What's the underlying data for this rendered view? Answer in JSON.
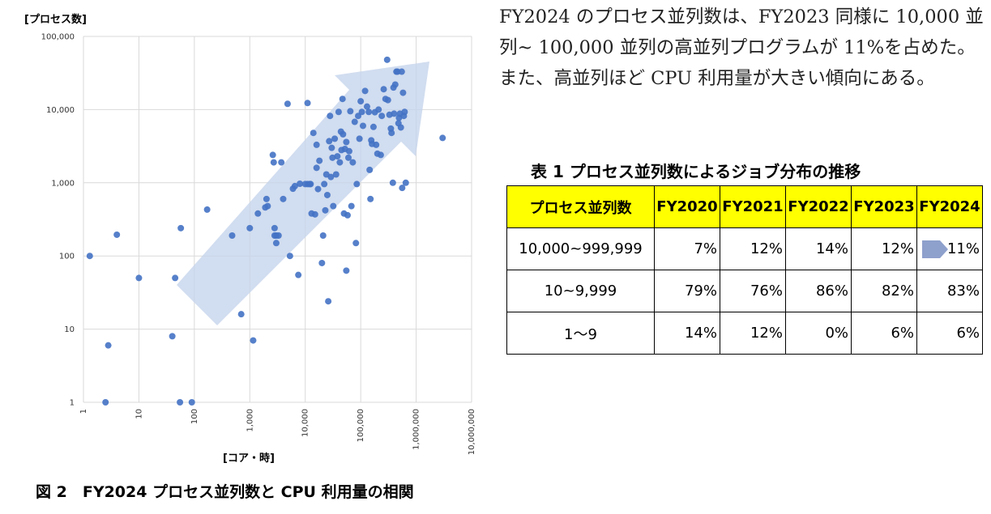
{
  "chart_data": {
    "type": "scatter",
    "title": "",
    "ylabel": "[プロセス数]",
    "xlabel": "[コア・時]",
    "xscale": "log",
    "yscale": "log",
    "xlim": [
      1,
      10000000
    ],
    "ylim": [
      1,
      100000
    ],
    "grid": true,
    "x_ticks": [
      "1",
      "10",
      "100",
      "1,000",
      "10,000",
      "100,000",
      "1,000,000",
      "10,000,000"
    ],
    "y_ticks": [
      "1",
      "10",
      "100",
      "1,000",
      "10,000",
      "100,000"
    ],
    "color": "#4472c4",
    "trend_arrow_color": "#c5d4ec",
    "points": [
      [
        1.3,
        100
      ],
      [
        2.5,
        1
      ],
      [
        2.8,
        6
      ],
      [
        4,
        195
      ],
      [
        10,
        50
      ],
      [
        40,
        8
      ],
      [
        45,
        50
      ],
      [
        55,
        1
      ],
      [
        57,
        240
      ],
      [
        90,
        1
      ],
      [
        170,
        430
      ],
      [
        480,
        190
      ],
      [
        700,
        16
      ],
      [
        1000,
        240
      ],
      [
        1150,
        7
      ],
      [
        1400,
        380
      ],
      [
        1900,
        460
      ],
      [
        2000,
        600
      ],
      [
        2100,
        480
      ],
      [
        2600,
        2400
      ],
      [
        2700,
        1900
      ],
      [
        2800,
        240
      ],
      [
        2800,
        190
      ],
      [
        3000,
        150
      ],
      [
        3000,
        190
      ],
      [
        3300,
        190
      ],
      [
        3700,
        1900
      ],
      [
        4000,
        600
      ],
      [
        4800,
        12000
      ],
      [
        5300,
        100
      ],
      [
        6000,
        830
      ],
      [
        6500,
        900
      ],
      [
        7500,
        55
      ],
      [
        8000,
        970
      ],
      [
        10000,
        960
      ],
      [
        11000,
        960
      ],
      [
        11000,
        12300
      ],
      [
        12000,
        960
      ],
      [
        12500,
        960
      ],
      [
        13000,
        380
      ],
      [
        14000,
        4800
      ],
      [
        15000,
        370
      ],
      [
        16000,
        3300
      ],
      [
        16000,
        1600
      ],
      [
        17000,
        820
      ],
      [
        18000,
        2000
      ],
      [
        20000,
        80
      ],
      [
        21000,
        190
      ],
      [
        22000,
        960
      ],
      [
        23000,
        420
      ],
      [
        24000,
        1300
      ],
      [
        25000,
        680
      ],
      [
        26000,
        24
      ],
      [
        27000,
        3700
      ],
      [
        28000,
        8200
      ],
      [
        29000,
        1200
      ],
      [
        30000,
        3000
      ],
      [
        31000,
        2200
      ],
      [
        32000,
        480
      ],
      [
        34000,
        4000
      ],
      [
        36000,
        1300
      ],
      [
        38000,
        2300
      ],
      [
        40000,
        9300
      ],
      [
        42000,
        1900
      ],
      [
        44000,
        5000
      ],
      [
        45000,
        2800
      ],
      [
        47000,
        14000
      ],
      [
        48000,
        4600
      ],
      [
        50000,
        380
      ],
      [
        52000,
        2900
      ],
      [
        55000,
        3600
      ],
      [
        55000,
        63
      ],
      [
        58000,
        360
      ],
      [
        60000,
        2200
      ],
      [
        62000,
        2700
      ],
      [
        65000,
        9500
      ],
      [
        68000,
        480
      ],
      [
        72000,
        1900
      ],
      [
        78000,
        6800
      ],
      [
        82000,
        150
      ],
      [
        85000,
        960
      ],
      [
        90000,
        8200
      ],
      [
        95000,
        4000
      ],
      [
        100000,
        13000
      ],
      [
        105000,
        9300
      ],
      [
        110000,
        6000
      ],
      [
        120000,
        18000
      ],
      [
        130000,
        11000
      ],
      [
        140000,
        9300
      ],
      [
        145000,
        1500
      ],
      [
        150000,
        600
      ],
      [
        155000,
        3800
      ],
      [
        160000,
        3400
      ],
      [
        170000,
        5800
      ],
      [
        180000,
        9200
      ],
      [
        190000,
        3300
      ],
      [
        200000,
        2500
      ],
      [
        210000,
        10000
      ],
      [
        230000,
        2400
      ],
      [
        240000,
        8200
      ],
      [
        260000,
        19000
      ],
      [
        280000,
        14000
      ],
      [
        300000,
        48000
      ],
      [
        310000,
        13500
      ],
      [
        330000,
        8500
      ],
      [
        350000,
        5500
      ],
      [
        360000,
        4800
      ],
      [
        380000,
        1000
      ],
      [
        390000,
        20000
      ],
      [
        400000,
        8800
      ],
      [
        420000,
        22000
      ],
      [
        440000,
        33000
      ],
      [
        460000,
        33000
      ],
      [
        480000,
        6500
      ],
      [
        490000,
        7700
      ],
      [
        510000,
        8800
      ],
      [
        530000,
        5700
      ],
      [
        550000,
        33000
      ],
      [
        560000,
        850
      ],
      [
        580000,
        17000
      ],
      [
        600000,
        8200
      ],
      [
        620000,
        9300
      ],
      [
        650000,
        1000
      ],
      [
        3000000,
        4100
      ]
    ]
  },
  "figure_caption": "図 2　FY2024 プロセス並列数と CPU 利用量の相関",
  "paragraph": "FY2024 のプロセス並列数は、FY2023 同様に 10,000 並列~ 100,000 並列の高並列プログラムが 11%を占めた。また、高並列ほど CPU 利用量が大きい傾向にある。",
  "table": {
    "caption": "表 1  プロセス並列数によるジョブ分布の推移",
    "header": [
      "プロセス並列数",
      "FY2020",
      "FY2021",
      "FY2022",
      "FY2023",
      "FY2024"
    ],
    "rows": [
      [
        "10,000~999,999",
        "7%",
        "12%",
        "14%",
        "12%",
        "11%"
      ],
      [
        "10~9,999",
        "79%",
        "76%",
        "86%",
        "82%",
        "83%"
      ],
      [
        "1～9",
        "14%",
        "12%",
        "0%",
        "6%",
        "6%"
      ]
    ],
    "header_color": "#ffff00",
    "arrow_color": "#8ea0cc"
  }
}
